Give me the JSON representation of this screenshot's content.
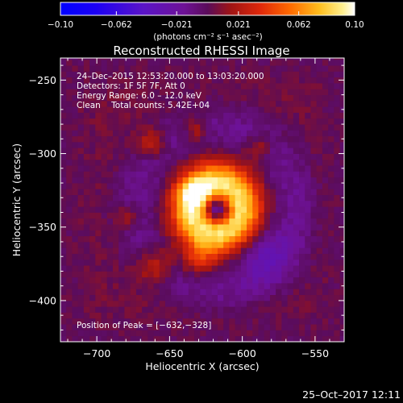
{
  "chart_data": {
    "type": "heatmap",
    "title": "Reconstructed RHESSI Image",
    "xlabel": "Heliocentric X (arcsec)",
    "ylabel": "Heliocentric Y (arcsec)",
    "xlim": [
      -725,
      -530
    ],
    "ylim": [
      -428,
      -235
    ],
    "xticks": [
      -700,
      -650,
      -600,
      -550
    ],
    "yticks": [
      -250,
      -300,
      -350,
      -400
    ],
    "colorbar": {
      "range": [
        -0.1,
        0.1
      ],
      "ticks": [
        -0.1,
        -0.062,
        -0.021,
        0.021,
        0.062,
        0.1
      ],
      "tick_labels": [
        "−0.10",
        "−0.062",
        "−0.021",
        "0.021",
        "0.062",
        "0.10"
      ],
      "label": "(photons cm⁻² s⁻¹ asec⁻²)"
    },
    "info_lines": [
      "24–Dec–2015 12:53:20.000 to 13:03:20.000",
      "Detectors: 1F 5F 7F, Att 0",
      "Energy Range: 6.0 – 12.0 keV",
      "Clean    Total counts: 5.42E+04"
    ],
    "peak_label": "Position of Peak = [−632,−328]",
    "peak": [
      -632,
      -328
    ],
    "source_components": [
      {
        "name": "ring",
        "x": -618,
        "y": -337,
        "radius": 17,
        "width": 10,
        "amp": 0.085
      },
      {
        "name": "peak",
        "x": -632,
        "y": -327,
        "radius": 0,
        "width": 7,
        "amp": 0.04
      },
      {
        "name": "ring-hole",
        "x": -617,
        "y": -338,
        "radius": 0,
        "width": 6,
        "amp": -0.05
      },
      {
        "name": "upper-left-lobe",
        "x": -662,
        "y": -293,
        "radius": 0,
        "width": 7,
        "amp": 0.03
      },
      {
        "name": "upper-mid-lobe",
        "x": -632,
        "y": -283,
        "radius": 0,
        "width": 6,
        "amp": 0.028
      },
      {
        "name": "upper-right-lobe",
        "x": -589,
        "y": -296,
        "radius": 0,
        "width": 6,
        "amp": 0.026
      },
      {
        "name": "left-lobe",
        "x": -678,
        "y": -343,
        "radius": 0,
        "width": 6,
        "amp": 0.022
      },
      {
        "name": "lower-left-lobe",
        "x": -660,
        "y": -376,
        "radius": 0,
        "width": 9,
        "amp": 0.032
      },
      {
        "name": "lower-lobe",
        "x": -630,
        "y": -372,
        "radius": 0,
        "width": 8,
        "amp": 0.03
      }
    ]
  },
  "footer_timestamp": "25–Oct–2017 12:11"
}
